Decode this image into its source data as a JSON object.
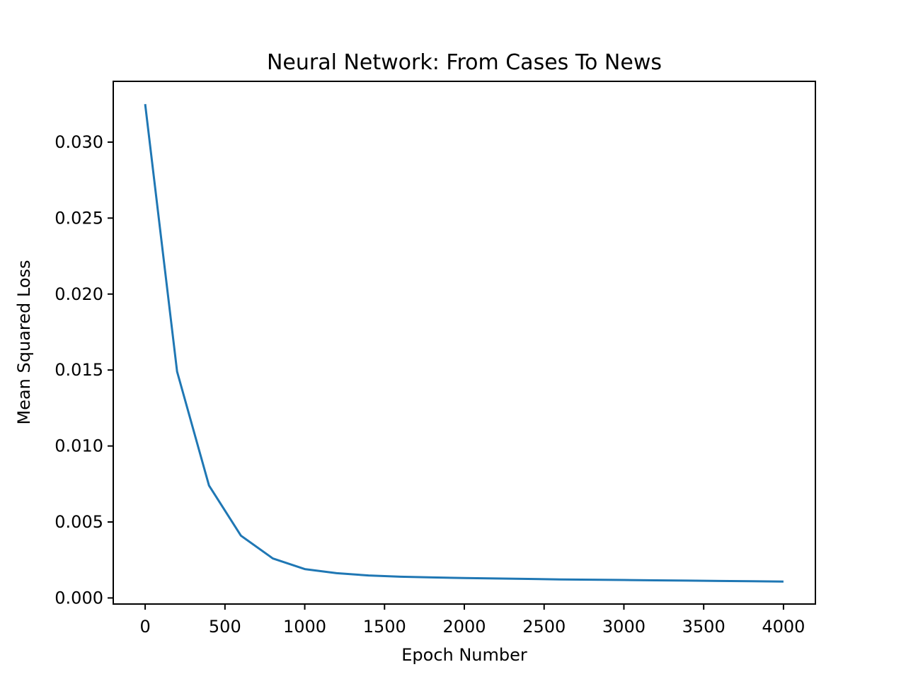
{
  "chart_data": {
    "type": "line",
    "title": "Neural Network: From Cases To News",
    "xlabel": "Epoch Number",
    "ylabel": "Mean Squared Loss",
    "xlim": [
      -200,
      4200
    ],
    "ylim": [
      -0.0004,
      0.034
    ],
    "xticks": [
      0,
      500,
      1000,
      1500,
      2000,
      2500,
      3000,
      3500,
      4000
    ],
    "xtick_labels": [
      "0",
      "500",
      "1000",
      "1500",
      "2000",
      "2500",
      "3000",
      "3500",
      "4000"
    ],
    "yticks": [
      0.0,
      0.005,
      0.01,
      0.015,
      0.02,
      0.025,
      0.03
    ],
    "ytick_labels": [
      "0.000",
      "0.005",
      "0.010",
      "0.015",
      "0.020",
      "0.025",
      "0.030"
    ],
    "grid": false,
    "series": [
      {
        "color": "#1f77b4",
        "x": [
          0,
          200,
          400,
          600,
          800,
          1000,
          1200,
          1400,
          1600,
          1800,
          2000,
          2200,
          2400,
          2600,
          2800,
          3000,
          3200,
          3400,
          3600,
          3800,
          4000
        ],
        "y": [
          0.0325,
          0.0149,
          0.0074,
          0.0041,
          0.0026,
          0.0019,
          0.00163,
          0.00148,
          0.0014,
          0.00135,
          0.00131,
          0.00128,
          0.00125,
          0.00122,
          0.0012,
          0.00118,
          0.00116,
          0.00114,
          0.00112,
          0.0011,
          0.00108
        ]
      }
    ]
  }
}
